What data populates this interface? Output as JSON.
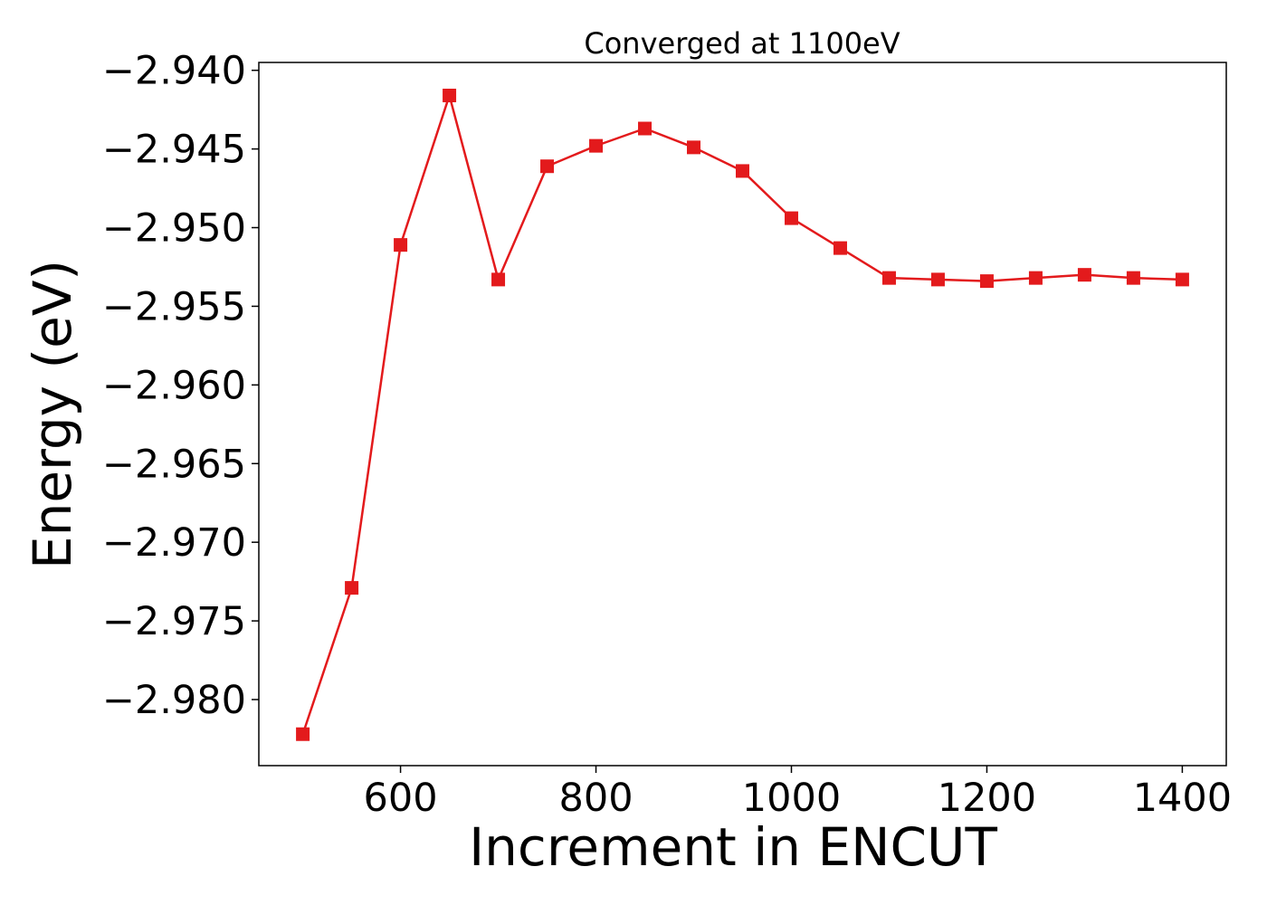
{
  "chart_data": {
    "type": "line",
    "title": "Converged at 1100eV",
    "xlabel": "Increment in ENCUT",
    "ylabel": "Energy (eV)",
    "xlim": [
      455,
      1445
    ],
    "ylim": [
      -2.9842,
      -2.9395
    ],
    "xticks": [
      600,
      800,
      1000,
      1200,
      1400
    ],
    "xtick_labels": [
      "600",
      "800",
      "1000",
      "1200",
      "1400"
    ],
    "yticks": [
      -2.94,
      -2.945,
      -2.95,
      -2.955,
      -2.96,
      -2.965,
      -2.97,
      -2.975,
      -2.98
    ],
    "ytick_labels": [
      "−2.940",
      "−2.945",
      "−2.950",
      "−2.955",
      "−2.960",
      "−2.965",
      "−2.970",
      "−2.975",
      "−2.980"
    ],
    "grid": false,
    "series": [
      {
        "color": "#e31a1c",
        "marker": "square",
        "x": [
          500,
          550,
          600,
          650,
          700,
          750,
          800,
          850,
          900,
          950,
          1000,
          1050,
          1100,
          1150,
          1200,
          1250,
          1300,
          1350,
          1400
        ],
        "y": [
          -2.9822,
          -2.9729,
          -2.9511,
          -2.9416,
          -2.9533,
          -2.9461,
          -2.9448,
          -2.9437,
          -2.9449,
          -2.9464,
          -2.9494,
          -2.9513,
          -2.9532,
          -2.9533,
          -2.9534,
          -2.9532,
          -2.953,
          -2.9532,
          -2.9533
        ]
      }
    ]
  }
}
